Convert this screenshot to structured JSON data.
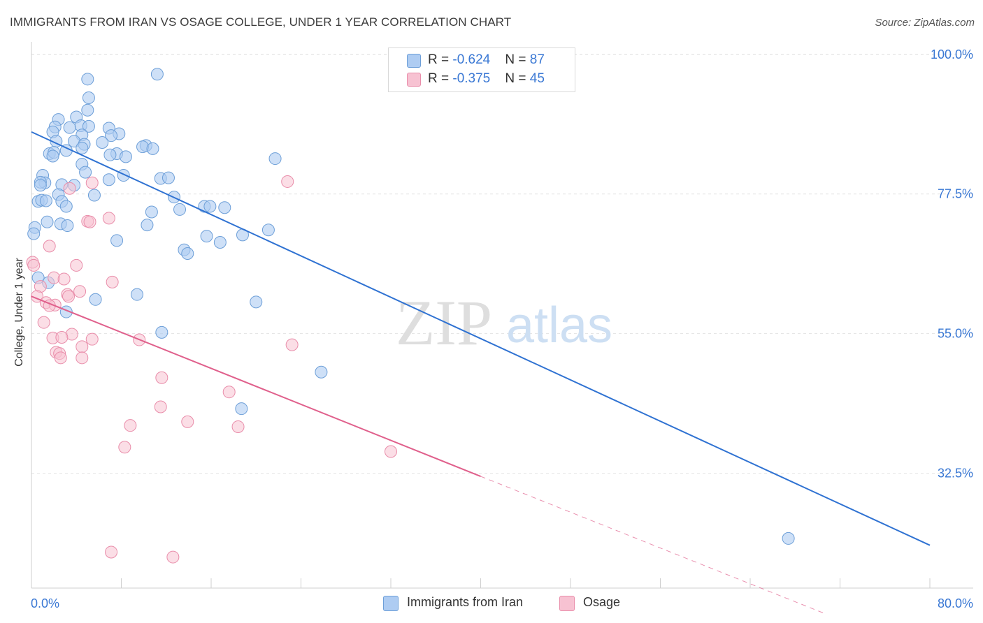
{
  "title": "IMMIGRANTS FROM IRAN VS OSAGE COLLEGE, UNDER 1 YEAR CORRELATION CHART",
  "source": "Source: ZipAtlas.com",
  "watermark": {
    "zip": "ZIP",
    "atlas": "atlas"
  },
  "legend": {
    "iran": {
      "r_label": "R = ",
      "r_value": "-0.624",
      "n_label": "N = ",
      "n_value": "87"
    },
    "osage": {
      "r_label": "R = ",
      "r_value": "-0.375",
      "n_label": "N = ",
      "n_value": "45"
    }
  },
  "colors": {
    "iran_fill": "#aeccf2",
    "iran_stroke": "#6d9fd8",
    "iran_line": "#2f72d2",
    "osage_fill": "#f7c2d2",
    "osage_stroke": "#e98daa",
    "osage_line": "#e0608c",
    "axis_text": "#3a78d4",
    "grid": "#e2e2e2"
  },
  "chart_data": {
    "type": "scatter",
    "title": "IMMIGRANTS FROM IRAN VS OSAGE COLLEGE, UNDER 1 YEAR CORRELATION CHART",
    "xlabel": "",
    "ylabel": "College, Under 1 year",
    "xlim": [
      0,
      80
    ],
    "ylim": [
      14,
      102
    ],
    "x_tick_labels": [
      "0.0%",
      "80.0%"
    ],
    "y_ticks": [
      32.5,
      55.0,
      77.5,
      100.0
    ],
    "y_tick_labels": [
      "32.5%",
      "55.0%",
      "77.5%",
      "100.0%"
    ],
    "grid": true,
    "legend_position": "top-center",
    "series": [
      {
        "name": "Immigrants from Iran",
        "r": -0.624,
        "n": 87,
        "trend": {
          "x": [
            0,
            80
          ],
          "y": [
            87.5,
            20.9
          ]
        },
        "points": [
          [
            5.0,
            96.0
          ],
          [
            11.2,
            96.8
          ],
          [
            5.1,
            93.0
          ],
          [
            5.0,
            91.0
          ],
          [
            4.0,
            89.9
          ],
          [
            2.4,
            89.5
          ],
          [
            4.4,
            88.5
          ],
          [
            2.1,
            88.3
          ],
          [
            3.4,
            88.2
          ],
          [
            5.1,
            88.4
          ],
          [
            6.9,
            88.1
          ],
          [
            4.5,
            87.0
          ],
          [
            1.9,
            87.5
          ],
          [
            7.8,
            87.2
          ],
          [
            7.1,
            86.9
          ],
          [
            3.8,
            86.0
          ],
          [
            2.2,
            86.0
          ],
          [
            4.7,
            85.5
          ],
          [
            6.3,
            85.8
          ],
          [
            10.2,
            85.3
          ],
          [
            9.9,
            85.1
          ],
          [
            10.8,
            84.8
          ],
          [
            4.5,
            84.9
          ],
          [
            3.1,
            84.5
          ],
          [
            1.6,
            84.0
          ],
          [
            2.0,
            84.2
          ],
          [
            1.9,
            83.6
          ],
          [
            7.6,
            84.0
          ],
          [
            8.4,
            83.5
          ],
          [
            7.0,
            83.8
          ],
          [
            21.7,
            83.2
          ],
          [
            4.5,
            82.3
          ],
          [
            4.8,
            81.0
          ],
          [
            8.2,
            80.5
          ],
          [
            1.0,
            80.5
          ],
          [
            11.5,
            80.0
          ],
          [
            12.2,
            80.1
          ],
          [
            6.9,
            79.8
          ],
          [
            1.2,
            79.3
          ],
          [
            0.8,
            79.4
          ],
          [
            2.7,
            79.0
          ],
          [
            3.8,
            78.9
          ],
          [
            0.8,
            78.9
          ],
          [
            5.6,
            77.3
          ],
          [
            2.4,
            77.4
          ],
          [
            12.7,
            77.0
          ],
          [
            0.6,
            76.3
          ],
          [
            0.9,
            76.5
          ],
          [
            1.3,
            76.4
          ],
          [
            2.7,
            76.3
          ],
          [
            3.1,
            75.5
          ],
          [
            15.4,
            75.5
          ],
          [
            15.9,
            75.5
          ],
          [
            17.2,
            75.3
          ],
          [
            13.2,
            75.0
          ],
          [
            10.7,
            74.6
          ],
          [
            2.6,
            72.7
          ],
          [
            1.4,
            73.0
          ],
          [
            10.3,
            72.5
          ],
          [
            3.2,
            72.4
          ],
          [
            0.3,
            72.1
          ],
          [
            0.2,
            71.1
          ],
          [
            21.1,
            71.7
          ],
          [
            18.8,
            70.9
          ],
          [
            15.6,
            70.7
          ],
          [
            7.6,
            70.0
          ],
          [
            16.8,
            69.7
          ],
          [
            13.6,
            68.5
          ],
          [
            13.9,
            67.9
          ],
          [
            0.6,
            64.0
          ],
          [
            1.5,
            63.2
          ],
          [
            9.4,
            61.3
          ],
          [
            5.7,
            60.5
          ],
          [
            20.0,
            60.1
          ],
          [
            3.1,
            58.5
          ],
          [
            11.6,
            55.2
          ],
          [
            25.8,
            48.8
          ],
          [
            18.7,
            42.9
          ],
          [
            67.4,
            22.0
          ]
        ]
      },
      {
        "name": "Osage",
        "r": -0.375,
        "n": 45,
        "trend": {
          "x": [
            0,
            40
          ],
          "y": [
            61.0,
            32.0
          ]
        },
        "trend_dashed": {
          "x": [
            40,
            70.5
          ],
          "y": [
            32.0,
            10.0
          ]
        },
        "points": [
          [
            22.8,
            79.5
          ],
          [
            5.4,
            79.3
          ],
          [
            3.4,
            78.4
          ],
          [
            6.9,
            73.6
          ],
          [
            5.0,
            73.1
          ],
          [
            5.2,
            73.0
          ],
          [
            0.1,
            66.5
          ],
          [
            1.6,
            69.1
          ],
          [
            0.2,
            66.0
          ],
          [
            4.0,
            66.0
          ],
          [
            2.0,
            64.0
          ],
          [
            2.9,
            63.8
          ],
          [
            7.2,
            63.3
          ],
          [
            0.8,
            62.6
          ],
          [
            4.3,
            61.8
          ],
          [
            3.2,
            61.3
          ],
          [
            3.3,
            61.0
          ],
          [
            0.5,
            61.0
          ],
          [
            1.3,
            60.0
          ],
          [
            2.1,
            59.6
          ],
          [
            1.6,
            59.5
          ],
          [
            1.1,
            56.8
          ],
          [
            3.6,
            54.9
          ],
          [
            1.9,
            54.3
          ],
          [
            2.7,
            54.4
          ],
          [
            5.4,
            54.1
          ],
          [
            9.6,
            54.0
          ],
          [
            23.2,
            53.2
          ],
          [
            4.5,
            52.9
          ],
          [
            2.2,
            52.0
          ],
          [
            2.5,
            51.8
          ],
          [
            2.6,
            51.1
          ],
          [
            4.5,
            51.1
          ],
          [
            11.6,
            47.9
          ],
          [
            17.6,
            45.6
          ],
          [
            11.5,
            43.2
          ],
          [
            13.9,
            40.8
          ],
          [
            8.8,
            40.2
          ],
          [
            18.4,
            40.0
          ],
          [
            8.3,
            36.7
          ],
          [
            32.0,
            36.0
          ],
          [
            7.1,
            19.8
          ],
          [
            12.6,
            19.0
          ]
        ]
      }
    ]
  },
  "bottom_legend": {
    "iran": "Immigrants from Iran",
    "osage": "Osage"
  }
}
